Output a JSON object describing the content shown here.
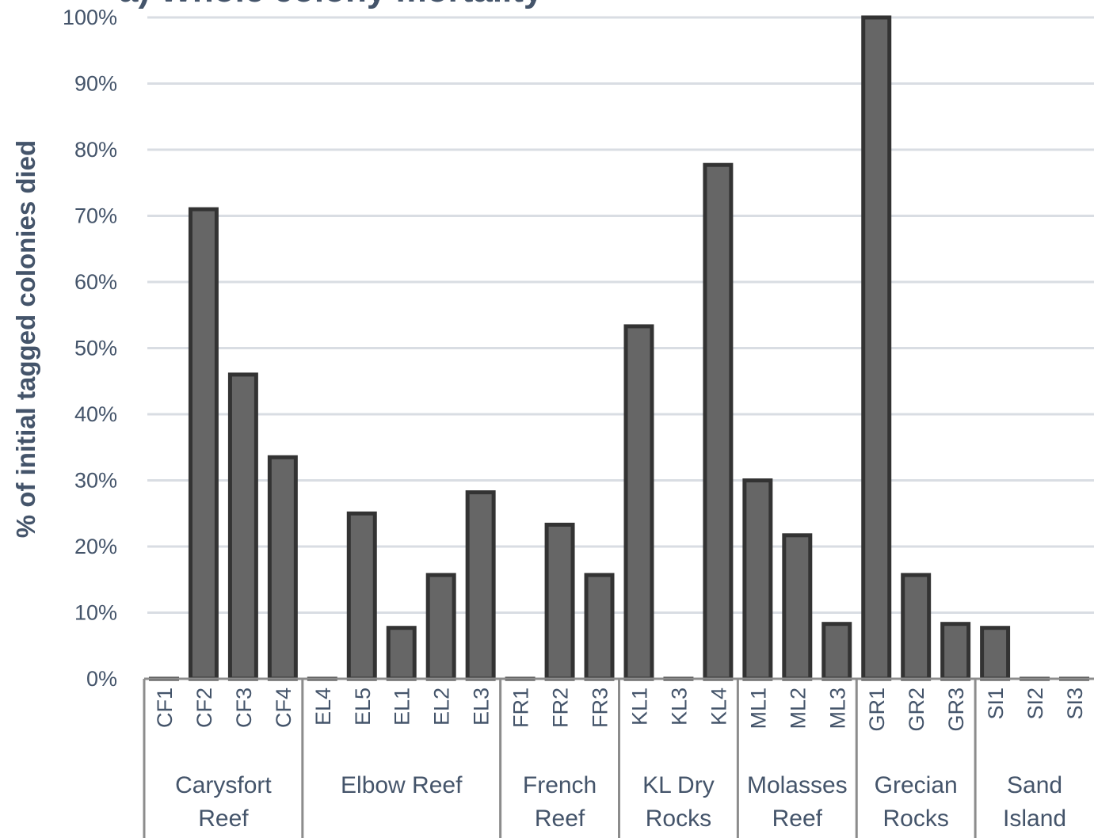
{
  "chart_data": {
    "type": "bar",
    "title": "a) Whole colony mortality",
    "ylabel": "% of initial tagged colonies died",
    "xlabel": "",
    "ylim": [
      0,
      100
    ],
    "ytick_labels": [
      "0%",
      "10%",
      "20%",
      "30%",
      "40%",
      "50%",
      "60%",
      "70%",
      "80%",
      "90%",
      "100%"
    ],
    "grid": true,
    "colors": {
      "bar_fill": "#666666",
      "bar_stroke": "#333333",
      "text": "#44546a",
      "grid": "#d9dde3"
    },
    "categories": [
      "CF1",
      "CF2",
      "CF3",
      "CF4",
      "EL4",
      "EL5",
      "EL1",
      "EL2",
      "EL3",
      "FR1",
      "FR2",
      "FR3",
      "KL1",
      "KL3",
      "KL4",
      "ML1",
      "ML2",
      "ML3",
      "GR1",
      "GR2",
      "GR3",
      "SI1",
      "SI2",
      "SI3"
    ],
    "values": [
      0,
      71,
      46,
      33.5,
      0,
      25,
      7.7,
      15.7,
      28.2,
      0,
      23.3,
      15.7,
      53.3,
      0,
      77.7,
      30,
      21.7,
      8.3,
      100,
      15.7,
      8.3,
      7.7,
      0,
      0
    ],
    "groups": [
      {
        "lines": [
          "Carysfort",
          "Reef"
        ],
        "count": 4
      },
      {
        "lines": [
          "Elbow Reef"
        ],
        "count": 5
      },
      {
        "lines": [
          "French",
          "Reef"
        ],
        "count": 3
      },
      {
        "lines": [
          "KL Dry",
          "Rocks"
        ],
        "count": 3
      },
      {
        "lines": [
          "Molasses",
          "Reef"
        ],
        "count": 3
      },
      {
        "lines": [
          "Grecian",
          "Rocks"
        ],
        "count": 3
      },
      {
        "lines": [
          "Sand",
          "Island"
        ],
        "count": 3
      }
    ]
  }
}
